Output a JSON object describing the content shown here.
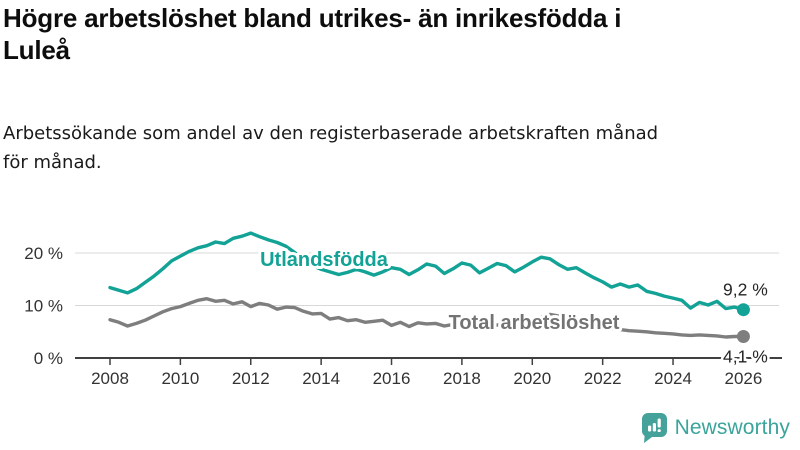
{
  "chart_data": {
    "type": "line",
    "title": "Högre arbetslöshet bland utrikes- än inrikesfödda i\nLuleå",
    "subtitle": "Arbetssökande som andel av den registerbaserade arbetskraften månad\nför månad.",
    "unit": "%",
    "grid": "horizontal",
    "legend_position": "inline-labels",
    "x_axis": {
      "start_year": 2008,
      "step_years": 0.25,
      "tick_labels": [
        "2008",
        "2010",
        "2012",
        "2014",
        "2016",
        "2018",
        "2020",
        "2022",
        "2024",
        "2026"
      ],
      "tick_years": [
        2008,
        2010,
        2012,
        2014,
        2016,
        2018,
        2020,
        2022,
        2024,
        2026
      ]
    },
    "y_axis": {
      "ticks": [
        {
          "value": 0,
          "label": "0 %"
        },
        {
          "value": 10,
          "label": "10 %"
        },
        {
          "value": 20,
          "label": "20 %"
        }
      ],
      "range": [
        0,
        25
      ]
    },
    "series": [
      {
        "name": "Utlandsfödda",
        "color": "#12a296",
        "label_color": "#12a296",
        "end_label": "9,2 %",
        "end_value": 9.2,
        "values": [
          13.4,
          12.9,
          12.4,
          13.2,
          14.4,
          15.6,
          17.0,
          18.5,
          19.4,
          20.3,
          21.0,
          21.4,
          22.1,
          21.8,
          22.8,
          23.2,
          23.8,
          23.1,
          22.5,
          22.0,
          21.3,
          20.1,
          18.8,
          17.6,
          16.9,
          16.4,
          15.9,
          16.3,
          16.9,
          16.4,
          15.8,
          16.4,
          17.2,
          16.9,
          15.9,
          16.8,
          17.9,
          17.5,
          16.1,
          17.0,
          18.1,
          17.7,
          16.2,
          17.1,
          18.0,
          17.6,
          16.4,
          17.3,
          18.3,
          19.2,
          18.9,
          17.8,
          16.9,
          17.2,
          16.2,
          15.3,
          14.5,
          13.5,
          14.1,
          13.5,
          13.9,
          12.7,
          12.3,
          11.8,
          11.4,
          11.0,
          9.5,
          10.6,
          10.1,
          10.8,
          9.4,
          9.7,
          9.2
        ]
      },
      {
        "name": "Total arbetslöshet",
        "color": "#7e7e7e",
        "label_color": "#737373",
        "end_label": "4,1 %",
        "end_value": 4.1,
        "values": [
          7.3,
          6.8,
          6.1,
          6.6,
          7.2,
          8.0,
          8.8,
          9.4,
          9.8,
          10.4,
          11.0,
          11.3,
          10.8,
          11.0,
          10.3,
          10.7,
          9.8,
          10.4,
          10.1,
          9.3,
          9.7,
          9.6,
          8.9,
          8.4,
          8.5,
          7.4,
          7.7,
          7.1,
          7.3,
          6.8,
          7.0,
          7.2,
          6.2,
          6.8,
          6.0,
          6.7,
          6.5,
          6.6,
          6.1,
          6.4,
          6.6,
          6.2,
          5.9,
          6.1,
          6.3,
          6.0,
          5.8,
          6.0,
          6.4,
          7.8,
          8.3,
          8.0,
          7.6,
          7.1,
          6.6,
          6.2,
          5.9,
          5.6,
          5.4,
          5.2,
          5.1,
          5.0,
          4.8,
          4.7,
          4.6,
          4.4,
          4.3,
          4.4,
          4.3,
          4.2,
          4.0,
          4.1,
          4.1
        ]
      }
    ],
    "colors": {
      "grid": "#d8d8d8",
      "axis": "#404040",
      "tick_text": "#333333",
      "end_label_text": "#262626"
    }
  },
  "branding": {
    "logo_text": "Newsworthy",
    "logo_icon": "bar-chart-speech-bubble-icon",
    "logo_color": "#45a29b"
  }
}
